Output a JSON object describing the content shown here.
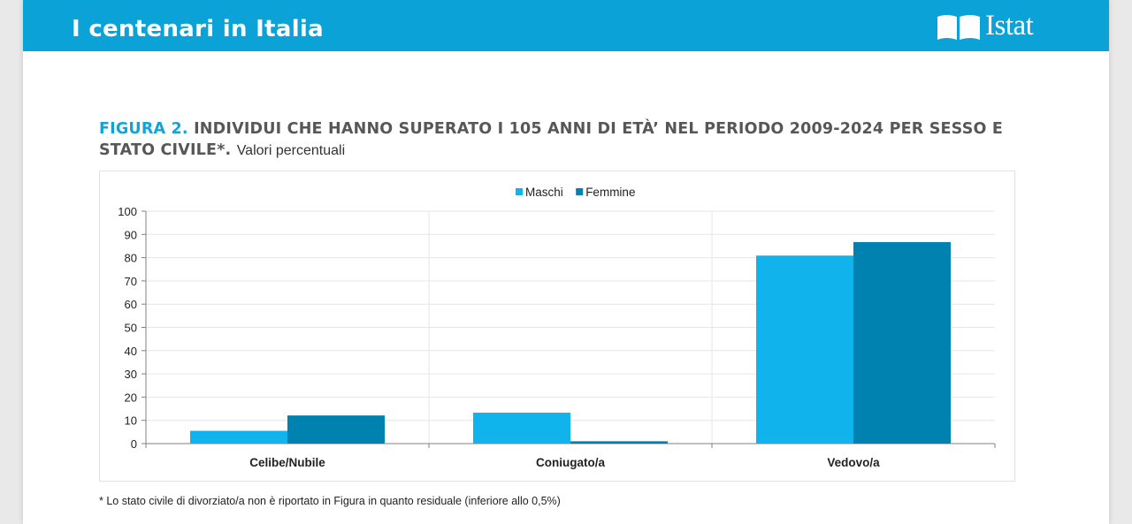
{
  "header": {
    "title": "I centenari in Italia",
    "logo_text": "Istat",
    "banner_color": "#0ba2d8"
  },
  "figure": {
    "number": "FIGURA 2.",
    "title": "INDIVIDUI CHE HANNO SUPERATO I 105 ANNI DI ETÀ’ NEL PERIODO 2009-2024 PER SESSO E STATO CIVILE*.",
    "subtitle": "Valori percentuali"
  },
  "chart_data": {
    "type": "bar",
    "categories": [
      "Celibe/Nubile",
      "Coniugato/a",
      "Vedovo/a"
    ],
    "series": [
      {
        "name": "Maschi",
        "color": "#11b3ec",
        "values": [
          5.5,
          13.3,
          80.9
        ]
      },
      {
        "name": "Femmine",
        "color": "#0082b0",
        "values": [
          12.1,
          1.0,
          86.7
        ]
      }
    ],
    "ylim": [
      0,
      100
    ],
    "yticks": [
      "0",
      "10",
      "20",
      "30",
      "40",
      "50",
      "60",
      "70",
      "80",
      "90",
      "100"
    ],
    "grid": true,
    "legend_position": "top-center"
  },
  "footnote": "* Lo stato civile di divorziato/a non è riportato in Figura in quanto residuale (inferiore allo 0,5%)"
}
